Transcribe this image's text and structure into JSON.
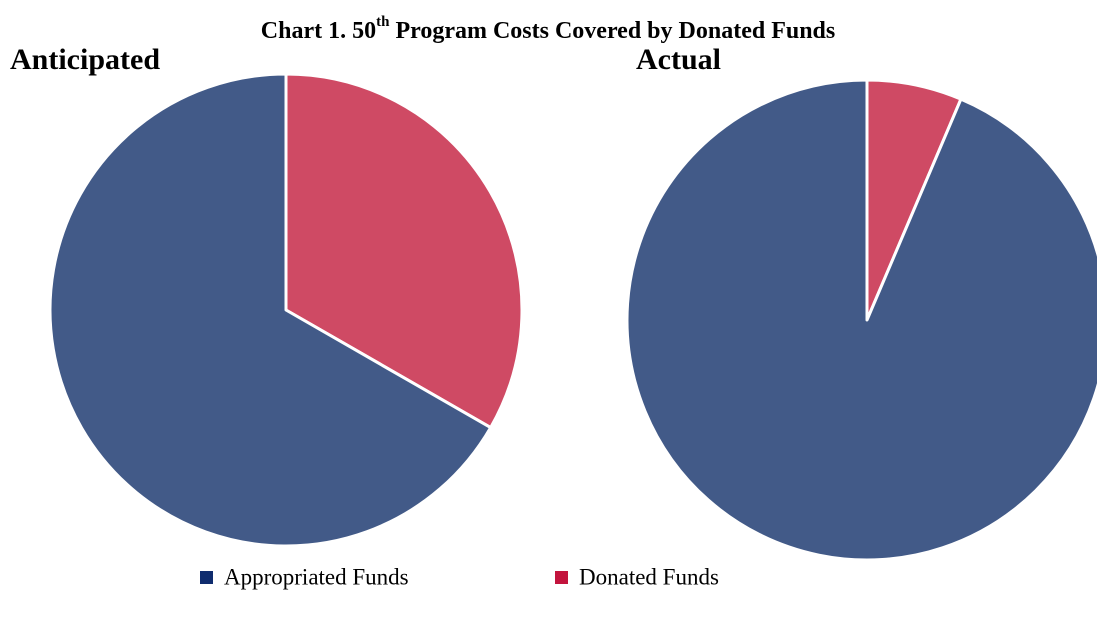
{
  "title": [
    "Chart 1. 50",
    "th",
    "Program Costs Covered by Donated Funds"
  ],
  "legend": [
    {
      "name": "Appropriated Funds",
      "color": "#0f2c6e"
    },
    {
      "name": "Donated Funds",
      "color": "#c3143d"
    }
  ],
  "chart_data": [
    {
      "type": "pie",
      "title": "Anticipated",
      "values": [
        66.7,
        33.3
      ],
      "colors": [
        "#425a88",
        "#cf4a64"
      ]
    },
    {
      "type": "pie",
      "title": "Actual",
      "values": [
        93.6,
        6.4
      ],
      "colors": [
        "#425a88",
        "#cf4a64"
      ]
    }
  ]
}
